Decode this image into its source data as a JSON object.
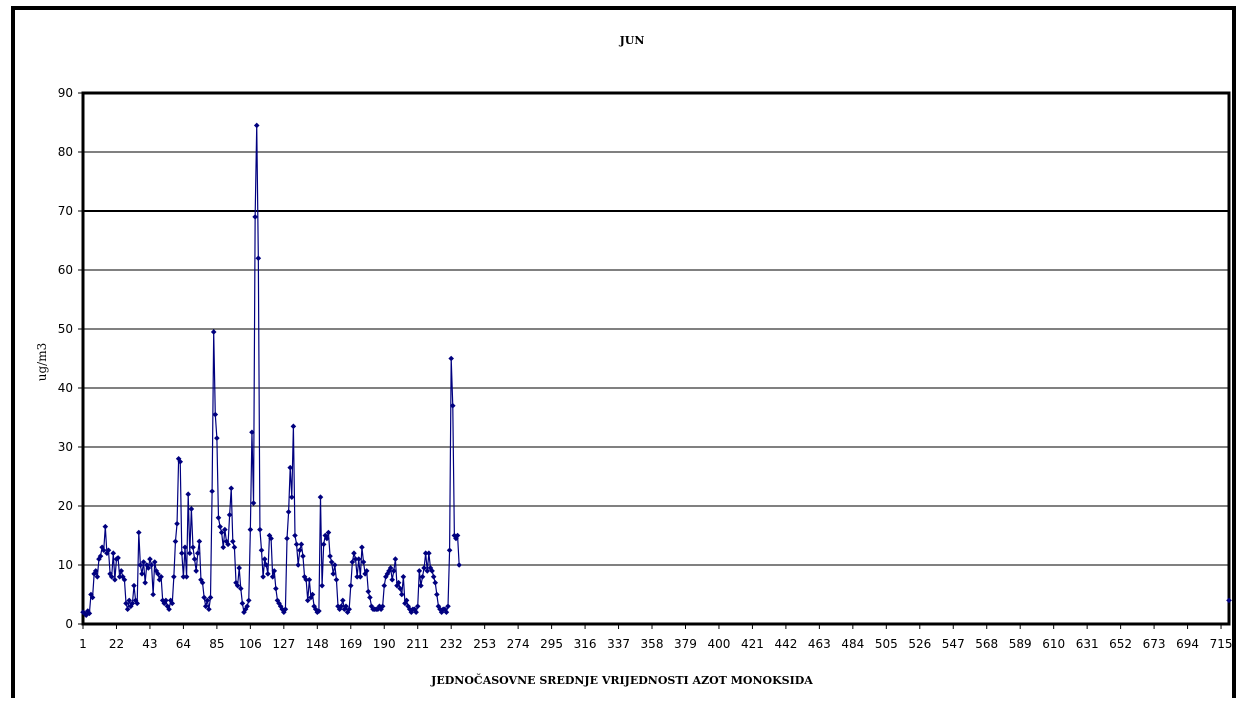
{
  "chart_data": {
    "type": "line",
    "title": "JUN",
    "xlabel": "JEDNOČASOVNE SREDNJE VRIJEDNOSTI AZOT MONOKSIDA",
    "ylabel": "ug/m3",
    "ylim": [
      0,
      90
    ],
    "yticks": [
      0,
      10,
      20,
      30,
      40,
      50,
      60,
      70,
      80,
      90
    ],
    "xlim": [
      1,
      720
    ],
    "xticks": [
      1,
      22,
      43,
      64,
      85,
      106,
      127,
      148,
      169,
      190,
      211,
      232,
      253,
      274,
      295,
      316,
      337,
      358,
      379,
      400,
      421,
      442,
      463,
      484,
      505,
      526,
      547,
      568,
      589,
      610,
      631,
      652,
      673,
      694,
      715
    ],
    "grid": true,
    "legend": "none",
    "colors": {
      "series": "#00007f",
      "grid": "#000000",
      "plot_border": "#000000"
    },
    "series": [
      {
        "x_start": 1,
        "values": [
          2.0,
          1.8,
          1.5,
          2.2,
          1.8,
          5.0,
          4.5,
          8.5,
          9.0,
          8.0,
          11.0,
          11.5,
          13.0,
          12.5,
          16.5,
          12.0,
          12.5,
          8.5,
          8.0,
          12.0,
          7.5,
          11.0,
          11.2,
          8.0,
          9.0,
          8.0,
          7.5,
          3.5,
          2.5,
          4.0,
          3.0,
          3.5,
          6.5,
          4.0,
          3.5,
          15.5,
          10.0,
          8.5,
          10.5,
          7.0,
          10.0,
          9.5,
          11.0,
          10.0,
          5.0,
          10.5,
          9.0,
          8.5,
          7.5,
          8.0,
          4.0,
          3.5,
          4.0,
          3.0,
          2.5,
          4.0,
          3.5,
          8.0,
          14.0,
          17.0,
          28.0,
          27.5,
          12.0,
          8.0,
          13.0,
          8.0,
          22.0,
          12.0,
          19.5,
          13.0,
          11.0,
          9.0,
          12.0,
          14.0,
          7.5,
          7.0,
          4.5,
          3.0,
          4.0,
          2.5,
          4.5,
          22.5,
          49.5,
          35.5,
          31.5,
          18.0,
          16.5,
          15.5,
          13.0,
          16.0,
          14.0,
          13.5,
          18.5,
          23.0,
          14.0,
          13.0,
          7.0,
          6.5,
          9.5,
          6.0,
          3.5,
          2.0,
          2.5,
          3.0,
          4.0,
          16.0,
          32.5,
          20.5,
          69.0,
          84.5,
          62.0,
          16.0,
          12.5,
          8.0,
          11.0,
          10.0,
          8.5,
          15.0,
          14.5,
          8.0,
          9.0,
          6.0,
          4.0,
          3.5,
          3.0,
          2.5,
          2.0,
          2.5,
          14.5,
          19.0,
          26.5,
          21.5,
          33.5,
          15.0,
          13.5,
          10.0,
          12.5,
          13.5,
          11.5,
          8.0,
          7.5,
          4.0,
          7.5,
          4.5,
          5.0,
          3.0,
          2.5,
          2.0,
          2.2,
          21.5,
          6.5,
          13.5,
          15.0,
          14.5,
          15.5,
          11.5,
          10.5,
          8.5,
          10.0,
          7.5,
          3.0,
          2.5,
          3.0,
          4.0,
          2.5,
          3.0,
          2.0,
          2.5,
          6.5,
          10.5,
          12.0,
          11.0,
          8.0,
          11.0,
          8.0,
          13.0,
          10.5,
          8.5,
          9.0,
          5.5,
          4.5,
          3.0,
          2.5,
          2.5,
          2.5,
          2.5,
          3.0,
          2.5,
          3.0,
          6.5,
          8.0,
          8.5,
          9.0,
          9.5,
          7.5,
          9.0,
          11.0,
          6.5,
          7.0,
          6.0,
          5.0,
          8.0,
          3.5,
          4.0,
          3.0,
          2.5,
          2.0,
          2.5,
          2.5,
          2.0,
          3.0,
          9.0,
          6.5,
          8.0,
          9.5,
          12.0,
          9.0,
          12.0,
          9.5,
          9.0,
          8.0,
          7.0,
          5.0,
          3.0,
          2.5,
          2.0,
          2.5,
          2.5,
          2.0,
          3.0,
          12.5,
          45.0,
          37.0,
          15.0,
          14.5,
          15.0,
          10.0
        ]
      },
      {
        "points": [
          [
            720,
            4.0
          ]
        ]
      }
    ]
  }
}
